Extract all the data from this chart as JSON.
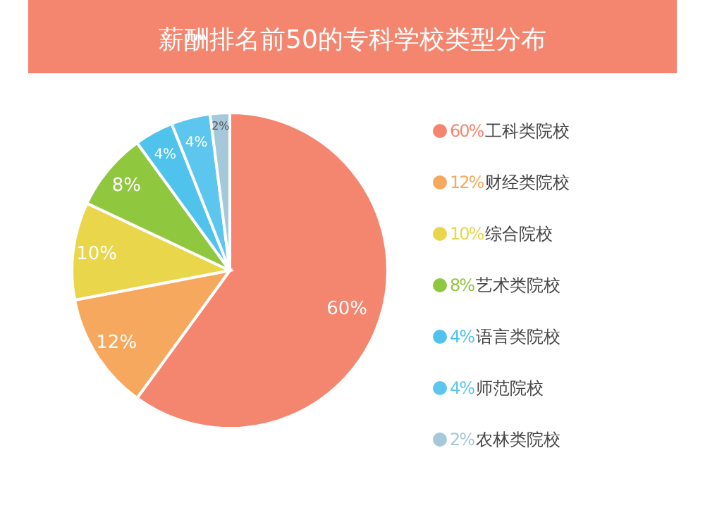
{
  "chart_data": {
    "type": "pie",
    "title": "薪酬排名前50的专科学校类型分布",
    "categories": [
      "工科类院校",
      "财经类院校",
      "综合院校",
      "艺术类院校",
      "语言类院校",
      "师范院校",
      "农林类院校"
    ],
    "values": [
      60,
      12,
      10,
      8,
      4,
      4,
      2
    ],
    "colors": [
      "#f4866f",
      "#f6a95e",
      "#e9d64a",
      "#8fc73f",
      "#4fc3ec",
      "#5cc6ee",
      "#a5c8da"
    ],
    "value_labels": [
      "60%",
      "12%",
      "10%",
      "8%",
      "4%",
      "4%",
      "2%"
    ],
    "legend": "right"
  }
}
